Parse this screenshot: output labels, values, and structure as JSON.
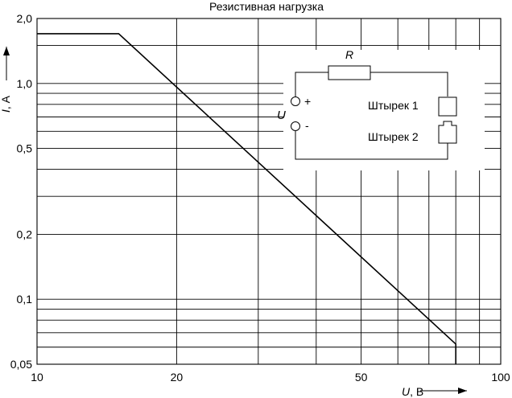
{
  "chart_data": {
    "type": "line",
    "title": "Резистивная нагрузка",
    "x_scale": "log",
    "y_scale": "log",
    "xlim": [
      10,
      100
    ],
    "ylim": [
      0.05,
      2.0
    ],
    "xlabel_var": "U",
    "xlabel_unit": ", В",
    "ylabel_var": "I",
    "ylabel_unit": ", А",
    "x_ticks": [
      {
        "value": 10,
        "label": "10"
      },
      {
        "value": 20,
        "label": "20"
      },
      {
        "value": 50,
        "label": "50"
      },
      {
        "value": 100,
        "label": "100"
      }
    ],
    "x_grid": [
      20,
      30,
      40,
      50,
      60,
      70,
      80,
      90
    ],
    "y_ticks": [
      {
        "value": 0.05,
        "label": "0,05"
      },
      {
        "value": 0.1,
        "label": "0,1"
      },
      {
        "value": 0.2,
        "label": "0,2"
      },
      {
        "value": 0.5,
        "label": "0,5"
      },
      {
        "value": 1.0,
        "label": "1,0"
      },
      {
        "value": 2.0,
        "label": "2,0"
      }
    ],
    "y_grid": [
      0.06,
      0.07,
      0.08,
      0.09,
      0.1,
      0.2,
      0.3,
      0.4,
      0.5,
      0.6,
      0.7,
      0.8,
      0.9,
      1.0,
      1.5
    ],
    "grid": true,
    "series": [
      {
        "x": [
          10,
          15,
          80,
          80
        ],
        "y": [
          1.7,
          1.7,
          0.062,
          0.05
        ]
      }
    ],
    "inset": {
      "resistor_label": "R",
      "source_label": "U",
      "plus_label": "+",
      "minus_label": "-",
      "pin1_label": "Штырек 1",
      "pin2_label": "Штырек 2"
    }
  }
}
